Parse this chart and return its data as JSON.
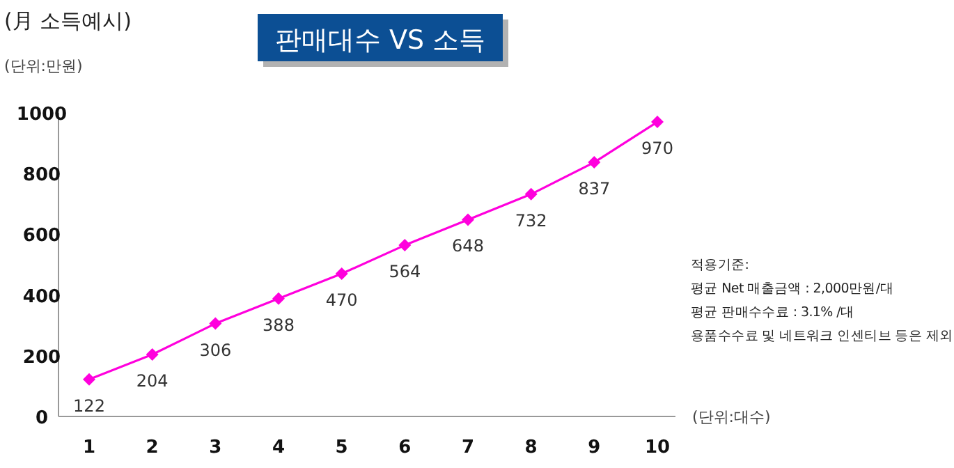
{
  "chart_data": {
    "type": "line",
    "title": "판매대수 VS 소득",
    "subtitle": "(月 소득예시)",
    "ylabel": "(단위:만원)",
    "xlabel": "(단위:대수)",
    "categories": [
      "1",
      "2",
      "3",
      "4",
      "5",
      "6",
      "7",
      "8",
      "9",
      "10"
    ],
    "series": [
      {
        "color": "#ff00dd",
        "values": [
          122,
          204,
          306,
          388,
          470,
          564,
          648,
          732,
          837,
          970
        ]
      }
    ],
    "ylim": [
      0,
      1000
    ],
    "yticks": [
      0,
      200,
      400,
      600,
      800,
      1000
    ],
    "marker": "diamond",
    "line_style": "solid",
    "data_labels": true,
    "grid": false,
    "annotations": [
      "적용기준:",
      "평균 Net 매출금액 : 2,000만원/대",
      "평균 판매수수료 : 3.1% /대",
      "용품수수료 및 네트워크 인센티브 등은 제외"
    ]
  }
}
